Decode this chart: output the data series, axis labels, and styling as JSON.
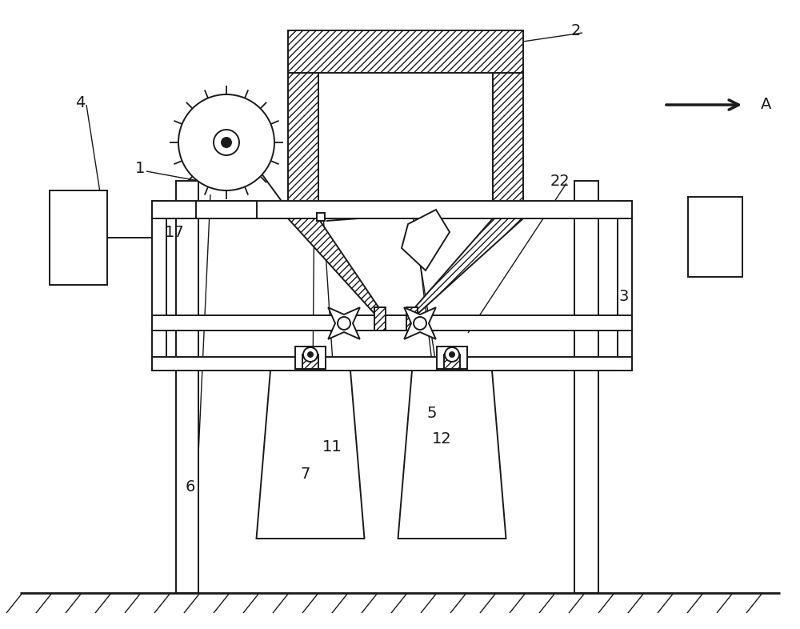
{
  "bg_color": "#ffffff",
  "line_color": "#1a1a1a",
  "figsize": [
    10.0,
    7.86
  ],
  "dpi": 100,
  "lw": 1.4,
  "lw_thick": 2.0
}
